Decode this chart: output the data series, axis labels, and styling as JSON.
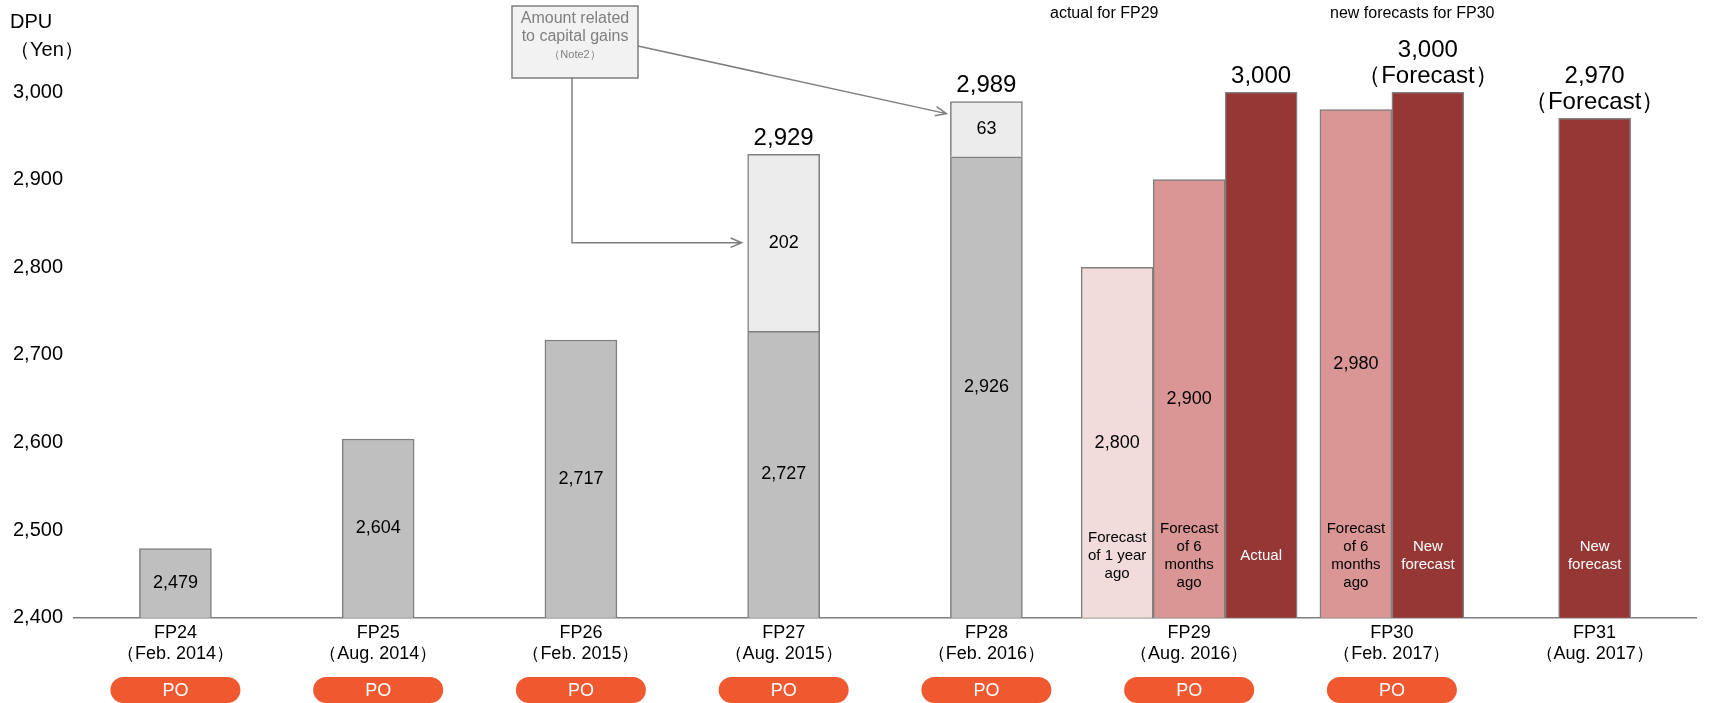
{
  "chart_data": {
    "type": "bar",
    "ylabel": "DPU\n（Yen）",
    "categories": [
      "FP24\n（Feb. 2014）",
      "FP25\n（Aug. 2014）",
      "FP26\n（Feb. 2015）",
      "FP27\n（Aug. 2015）",
      "FP28\n（Feb. 2016）",
      "FP29\n（Aug. 2016）",
      "FP30\n（Feb. 2017）",
      "FP31\n（Aug. 2017）"
    ],
    "series": [
      {
        "name": "Forecast of 1 year ago",
        "color": "#f2dcdb",
        "values": [
          null,
          null,
          null,
          null,
          null,
          2800,
          null,
          null
        ],
        "value_labels": [
          null,
          null,
          null,
          null,
          null,
          "2,800",
          null,
          null
        ]
      },
      {
        "name": "Forecast of 6 months ago",
        "color": "#d99694",
        "values": [
          null,
          null,
          null,
          null,
          null,
          2900,
          2980,
          null
        ],
        "value_labels": [
          null,
          null,
          null,
          null,
          null,
          "2,900",
          "2,980",
          null
        ]
      },
      {
        "name": "Actual",
        "color": "#953735",
        "values": [
          null,
          null,
          null,
          null,
          null,
          3000,
          null,
          null
        ],
        "value_labels": [
          null,
          null,
          null,
          null,
          null,
          "3,000",
          null,
          null
        ]
      },
      {
        "name": "New forecast",
        "color": "#953735",
        "values": [
          null,
          null,
          null,
          null,
          null,
          null,
          3000,
          2970
        ],
        "value_labels": [
          null,
          null,
          null,
          null,
          null,
          null,
          "3,000\n（Forecast）",
          "2,970\n（Forecast）"
        ]
      },
      {
        "color": "#bfbfbf",
        "values": [
          2479,
          2604,
          2717,
          2727,
          2926,
          null,
          null,
          null
        ],
        "value_labels": [
          "2,479",
          "2,604",
          "2,717",
          "2,727",
          "2,926",
          null,
          null,
          null
        ]
      },
      {
        "color": "#ececec",
        "base": [
          null,
          null,
          null,
          2727,
          2926,
          null,
          null,
          null
        ],
        "values": [
          null,
          null,
          null,
          202,
          63,
          null,
          null,
          null
        ],
        "value_labels": [
          null,
          null,
          null,
          "202",
          "63",
          null,
          null,
          null
        ]
      }
    ],
    "totals": [
      null,
      null,
      null,
      "2,929",
      "2,989",
      null,
      null,
      null
    ],
    "ylim": [
      2400,
      3000
    ],
    "yticks": [
      {
        "value": 2400,
        "label": "2,400"
      },
      {
        "value": 2500,
        "label": "2,500"
      },
      {
        "value": 2600,
        "label": "2,600"
      },
      {
        "value": 2700,
        "label": "2,700"
      },
      {
        "value": 2800,
        "label": "2,800"
      },
      {
        "value": 2900,
        "label": "2,900"
      },
      {
        "value": 3000,
        "label": "3,000"
      }
    ],
    "grid": false,
    "legend": false,
    "annotations": [
      "Amount related to capital gains\n（Note2）",
      "actual for FP29",
      "new forecasts for FP30",
      "PO",
      "PO",
      "PO",
      "PO",
      "PO",
      "PO",
      "PO"
    ]
  }
}
